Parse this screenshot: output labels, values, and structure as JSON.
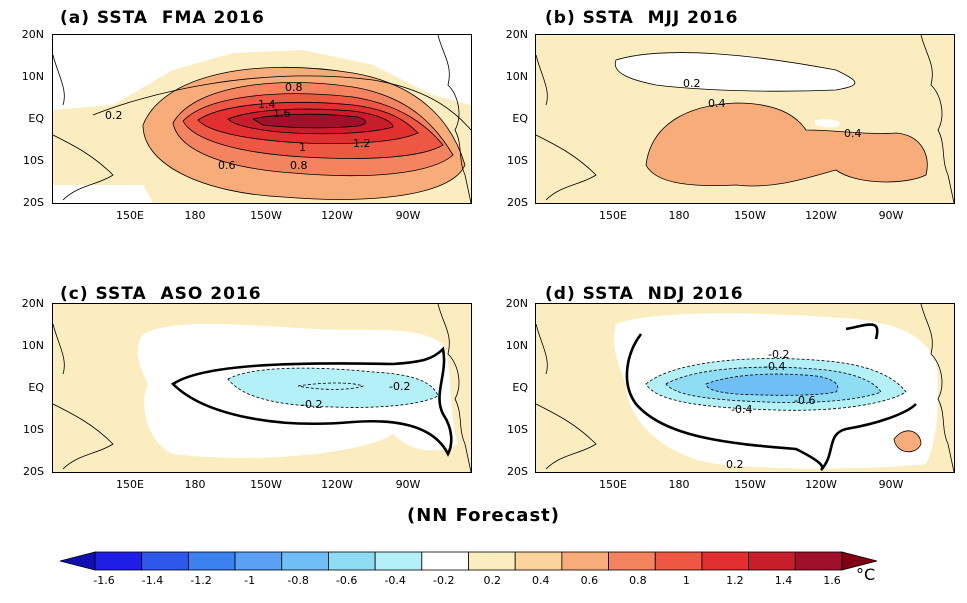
{
  "panels": [
    {
      "id": "a",
      "title": "(a) SSTA  FMA 2016"
    },
    {
      "id": "b",
      "title": "(b) SSTA  MJJ 2016"
    },
    {
      "id": "c",
      "title": "(c) SSTA  ASO 2016"
    },
    {
      "id": "d",
      "title": "(d) SSTA  NDJ 2016"
    }
  ],
  "y_ticks": [
    "20N",
    "10N",
    "EQ",
    "10S",
    "20S"
  ],
  "x_ticks": [
    "150E",
    "180",
    "150W",
    "120W",
    "90W"
  ],
  "subtitle": "(NN Forecast)",
  "colorbar": {
    "levels": [
      "-1.6",
      "-1.4",
      "-1.2",
      "-1",
      "-0.8",
      "-0.6",
      "-0.4",
      "-0.2",
      "0.2",
      "0.4",
      "0.6",
      "0.8",
      "1",
      "1.2",
      "1.4",
      "1.6"
    ],
    "colors": [
      "#1e1ee6",
      "#2e58e8",
      "#3b82f0",
      "#5aa0f5",
      "#6fbef5",
      "#8fdcf5",
      "#b4f0f7",
      "#ffffff",
      "#fbedbf",
      "#fbd39c",
      "#f8ac7a",
      "#f4835f",
      "#ee5744",
      "#e23030",
      "#c71e2b",
      "#a0102a"
    ],
    "unit": "°C"
  },
  "contour_labels": {
    "a": [
      "0.2",
      "0.8",
      "1.4",
      "1.6",
      "1",
      "1.2",
      "0.6",
      "0.8"
    ],
    "b": [
      "0.2",
      "0.4",
      "0.4"
    ],
    "c": [
      "-0.2",
      "-0.2"
    ],
    "d": [
      "-0.2",
      "-0.4",
      "-0.4",
      "-0.6",
      "0.2"
    ]
  }
}
